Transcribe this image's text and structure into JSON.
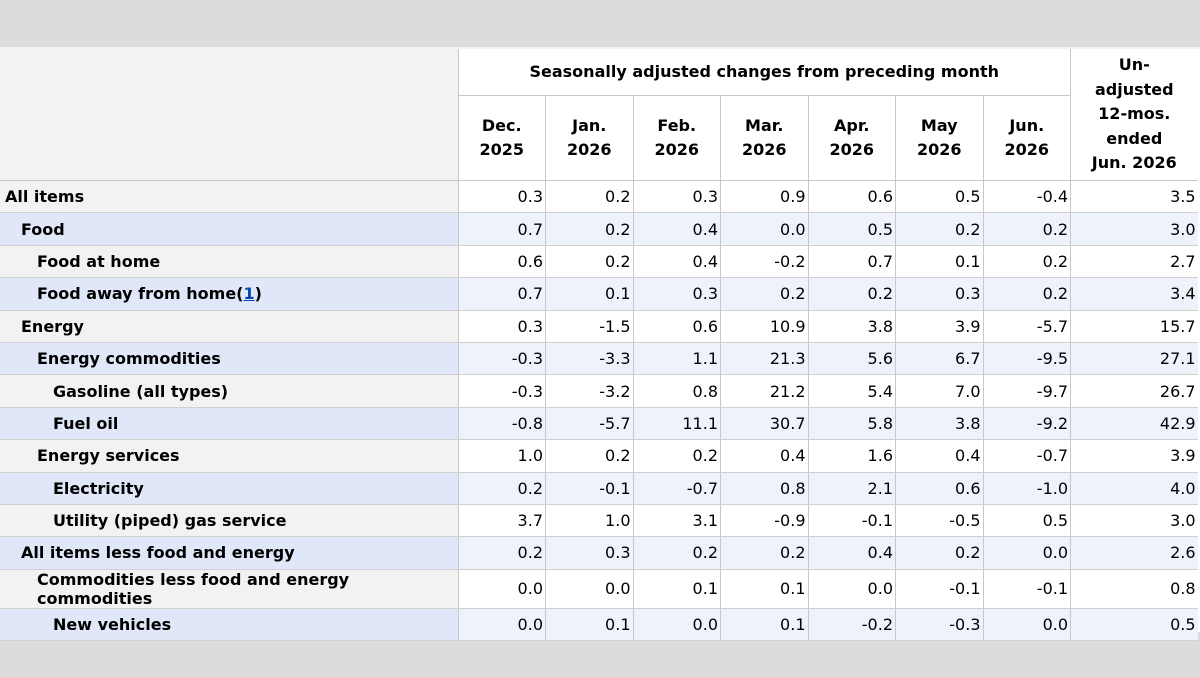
{
  "header": {
    "group_title": "Seasonally adjusted changes from preceding month",
    "annual_title_lines": [
      "Un-",
      "adjusted",
      "12-mos.",
      "ended",
      "Jun. 2026"
    ],
    "months": [
      {
        "m": "Dec.",
        "y": "2025"
      },
      {
        "m": "Jan.",
        "y": "2026"
      },
      {
        "m": "Feb.",
        "y": "2026"
      },
      {
        "m": "Mar.",
        "y": "2026"
      },
      {
        "m": "Apr.",
        "y": "2026"
      },
      {
        "m": "May",
        "y": "2026"
      },
      {
        "m": "Jun.",
        "y": "2026"
      }
    ]
  },
  "rows": [
    {
      "label": "All items",
      "level": 0,
      "values": [
        "0.3",
        "0.2",
        "0.3",
        "0.9",
        "0.6",
        "0.5",
        "-0.4",
        "3.5"
      ]
    },
    {
      "label": "Food",
      "level": 1,
      "values": [
        "0.7",
        "0.2",
        "0.4",
        "0.0",
        "0.5",
        "0.2",
        "0.2",
        "3.0"
      ]
    },
    {
      "label": "Food at home",
      "level": 2,
      "values": [
        "0.6",
        "0.2",
        "0.4",
        "-0.2",
        "0.7",
        "0.1",
        "0.2",
        "2.7"
      ]
    },
    {
      "label": "Food away from home",
      "level": 2,
      "footnote": "1",
      "values": [
        "0.7",
        "0.1",
        "0.3",
        "0.2",
        "0.2",
        "0.3",
        "0.2",
        "3.4"
      ]
    },
    {
      "label": "Energy",
      "level": 1,
      "values": [
        "0.3",
        "-1.5",
        "0.6",
        "10.9",
        "3.8",
        "3.9",
        "-5.7",
        "15.7"
      ]
    },
    {
      "label": "Energy commodities",
      "level": 2,
      "values": [
        "-0.3",
        "-3.3",
        "1.1",
        "21.3",
        "5.6",
        "6.7",
        "-9.5",
        "27.1"
      ]
    },
    {
      "label": "Gasoline (all types)",
      "level": 3,
      "values": [
        "-0.3",
        "-3.2",
        "0.8",
        "21.2",
        "5.4",
        "7.0",
        "-9.7",
        "26.7"
      ]
    },
    {
      "label": "Fuel oil",
      "level": 3,
      "values": [
        "-0.8",
        "-5.7",
        "11.1",
        "30.7",
        "5.8",
        "3.8",
        "-9.2",
        "42.9"
      ]
    },
    {
      "label": "Energy services",
      "level": 2,
      "values": [
        "1.0",
        "0.2",
        "0.2",
        "0.4",
        "1.6",
        "0.4",
        "-0.7",
        "3.9"
      ]
    },
    {
      "label": "Electricity",
      "level": 3,
      "values": [
        "0.2",
        "-0.1",
        "-0.7",
        "0.8",
        "2.1",
        "0.6",
        "-1.0",
        "4.0"
      ]
    },
    {
      "label": "Utility (piped) gas service",
      "level": 3,
      "values": [
        "3.7",
        "1.0",
        "3.1",
        "-0.9",
        "-0.1",
        "-0.5",
        "0.5",
        "3.0"
      ]
    },
    {
      "label": "All items less food and energy",
      "level": 1,
      "values": [
        "0.2",
        "0.3",
        "0.2",
        "0.2",
        "0.4",
        "0.2",
        "0.0",
        "2.6"
      ]
    },
    {
      "label": "Commodities less food and energy commodities",
      "level": 2,
      "values": [
        "0.0",
        "0.0",
        "0.1",
        "0.1",
        "0.0",
        "-0.1",
        "-0.1",
        "0.8"
      ]
    },
    {
      "label": "New vehicles",
      "level": 3,
      "values": [
        "0.0",
        "0.1",
        "0.0",
        "0.1",
        "-0.2",
        "-0.3",
        "0.0",
        "0.5"
      ]
    }
  ]
}
